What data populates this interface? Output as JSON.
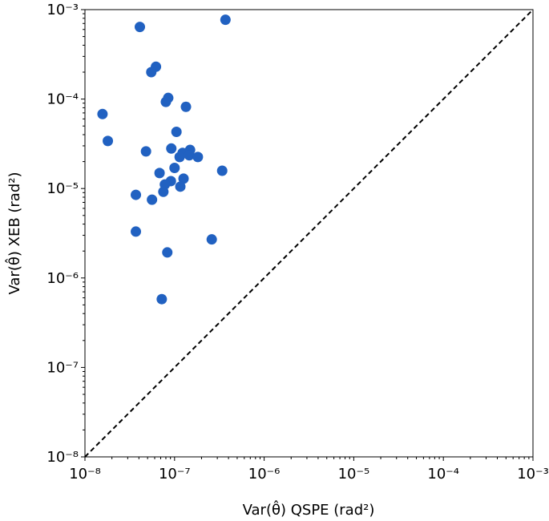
{
  "chart_data": {
    "type": "scatter",
    "xlabel": "Var(θ̂) QSPE (rad²)",
    "ylabel": "Var(θ̂) XEB (rad²)",
    "xscale": "log",
    "yscale": "log",
    "xlim": [
      1e-08,
      0.001
    ],
    "ylim": [
      1e-08,
      0.001
    ],
    "xticks": [
      {
        "value": 1e-08,
        "label": "10⁻⁸"
      },
      {
        "value": 1e-07,
        "label": "10⁻⁷"
      },
      {
        "value": 1e-06,
        "label": "10⁻⁶"
      },
      {
        "value": 1e-05,
        "label": "10⁻⁵"
      },
      {
        "value": 0.0001,
        "label": "10⁻⁴"
      },
      {
        "value": 0.001,
        "label": "10⁻³"
      }
    ],
    "yticks": [
      {
        "value": 1e-08,
        "label": "10⁻⁸"
      },
      {
        "value": 1e-07,
        "label": "10⁻⁷"
      },
      {
        "value": 1e-06,
        "label": "10⁻⁶"
      },
      {
        "value": 1e-05,
        "label": "10⁻⁵"
      },
      {
        "value": 0.0001,
        "label": "10⁻⁴"
      },
      {
        "value": 0.001,
        "label": "10⁻³"
      }
    ],
    "diagonal": true,
    "series": [
      {
        "color": "#2161c1",
        "x": [
          1.57e-08,
          1.8e-08,
          4.1e-08,
          3.7e-07,
          6.2e-08,
          5.5e-08,
          8.5e-08,
          8e-08,
          1.34e-07,
          1.05e-07,
          4.8e-08,
          9.2e-08,
          1.49e-07,
          1.23e-07,
          1.14e-07,
          1.46e-07,
          1.82e-07,
          1e-07,
          3.4e-07,
          6.8e-08,
          1.26e-07,
          9.1e-08,
          7.8e-08,
          1.16e-07,
          7.5e-08,
          3.7e-08,
          5.6e-08,
          3.7e-08,
          2.6e-07,
          8.3e-08,
          7.2e-08
        ],
        "values": [
          6.8e-05,
          3.4e-05,
          0.00064,
          0.00077,
          0.00023,
          0.0002,
          0.000103,
          9.3e-05,
          8.2e-05,
          4.3e-05,
          2.6e-05,
          2.8e-05,
          2.7e-05,
          2.5e-05,
          2.25e-05,
          2.35e-05,
          2.25e-05,
          1.7e-05,
          1.58e-05,
          1.49e-05,
          1.29e-05,
          1.21e-05,
          1.11e-05,
          1.05e-05,
          9.2e-06,
          8.5e-06,
          7.5e-06,
          3.3e-06,
          2.7e-06,
          1.93e-06,
          5.8e-07
        ]
      }
    ]
  }
}
